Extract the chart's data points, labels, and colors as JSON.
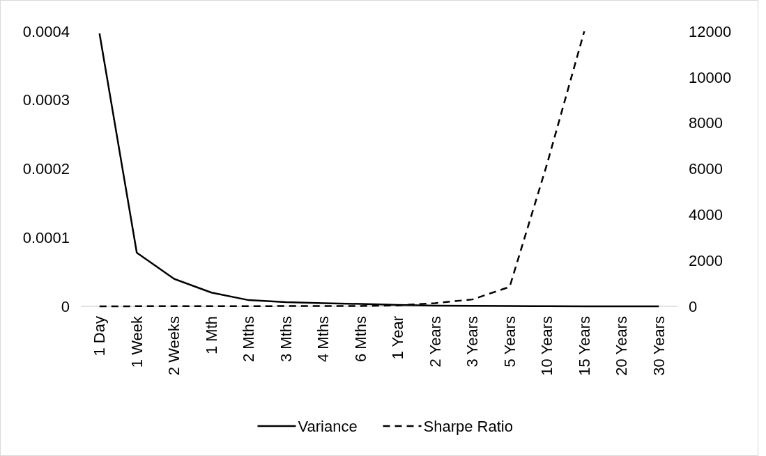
{
  "chart_data": {
    "type": "line",
    "categories": [
      "1 Day",
      "1 Week",
      "2 Weeks",
      "1 Mth",
      "2 Mths",
      "3 Mths",
      "4 Mths",
      "6 Mths",
      "1 Year",
      "2 Years",
      "3 Years",
      "5 Years",
      "10 Years",
      "15 Years",
      "20 Years",
      "30 Years"
    ],
    "series": [
      {
        "name": "Variance",
        "color": "#000000",
        "line_style": "solid",
        "values": [
          0.000397,
          7.8e-05,
          4e-05,
          2e-05,
          9e-06,
          6e-06,
          4.5e-06,
          3.5e-06,
          2e-06,
          1e-06,
          7e-07,
          4e-07,
          2e-07,
          1e-07,
          1e-07,
          1e-07
        ]
      },
      {
        "name": "Sharpe Ratio",
        "color": "#000000",
        "line_style": "dashed",
        "axis": "y2",
        "values": [
          2,
          4,
          6,
          8,
          10,
          12,
          14,
          18,
          40,
          140,
          300,
          850,
          6200,
          12000,
          null,
          null
        ]
      }
    ],
    "ylim": [
      0,
      0.0004
    ],
    "yticks": [
      0,
      0.0001,
      0.0002,
      0.0003,
      0.0004
    ],
    "y2lim": [
      0,
      12000
    ],
    "y2ticks": [
      0,
      2000,
      4000,
      6000,
      8000,
      10000,
      12000
    ],
    "grid": false,
    "legend": "bottom"
  }
}
